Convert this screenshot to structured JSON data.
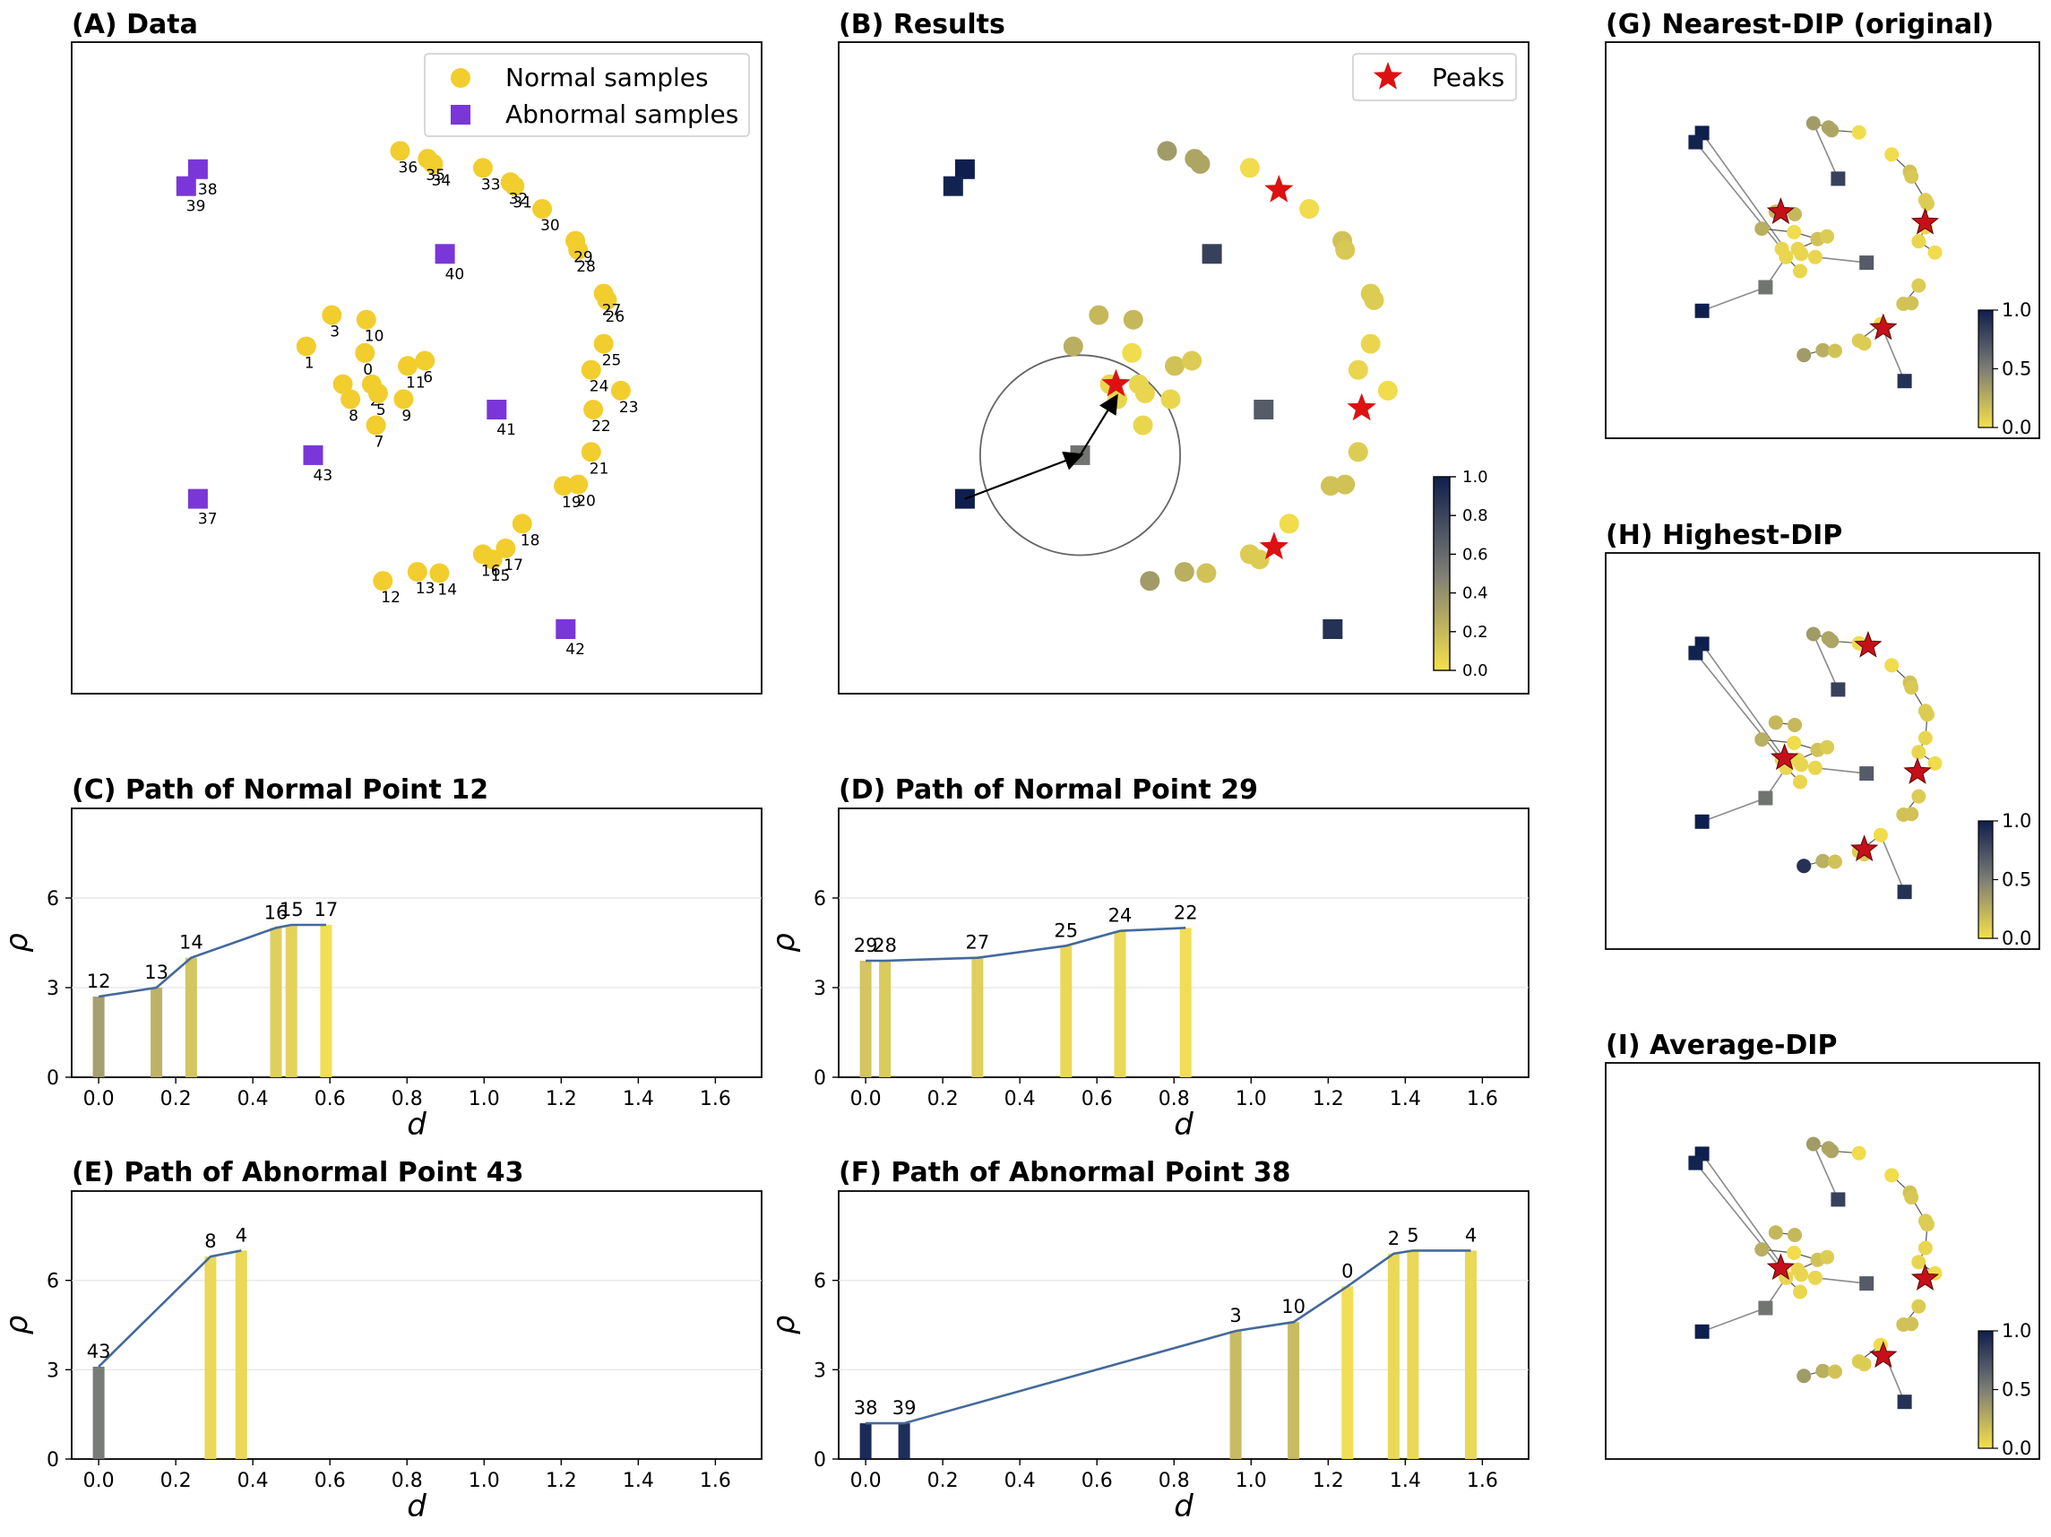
{
  "colors": {
    "normal": "#f2cd2e",
    "abnormal": "#7a36d8",
    "peak": "#dd1111",
    "line": "#44699b",
    "cmap_low": "#f5e04a",
    "cmap_mid": "#7d7d75",
    "cmap_high": "#0f1f4d",
    "link": "#8a8a8a"
  },
  "panels": {
    "A": {
      "title": "(A) Data",
      "legend": [
        "Normal samples",
        "Abnormal samples"
      ]
    },
    "B": {
      "title": "(B) Results",
      "legend": [
        "Peaks"
      ],
      "colorbar_ticks": [
        "0.0",
        "0.2",
        "0.4",
        "0.6",
        "0.8",
        "1.0"
      ]
    },
    "C": {
      "title": "(C) Path of Normal Point 12"
    },
    "D": {
      "title": "(D) Path of Normal Point 29"
    },
    "E": {
      "title": "(E) Path of Abnormal Point 43"
    },
    "F": {
      "title": "(F) Path of Abnormal Point 38"
    },
    "G": {
      "title": "(G) Nearest-DIP (original)",
      "colorbar_ticks": [
        "0.0",
        "0.5",
        "1.0"
      ]
    },
    "H": {
      "title": "(H) Highest-DIP",
      "colorbar_ticks": [
        "0.0",
        "0.5",
        "1.0"
      ]
    },
    "I": {
      "title": "(I) Average-DIP",
      "colorbar_ticks": [
        "0.0",
        "0.5",
        "1.0"
      ]
    }
  },
  "chart_data": [
    {
      "panel": "A",
      "type": "scatter",
      "title": "(A) Data",
      "xlim": [
        0,
        100
      ],
      "ylim": [
        0,
        100
      ],
      "series": [
        {
          "name": "Normal samples",
          "marker": "circle",
          "points": [
            {
              "id": "0",
              "x": 42.5,
              "y": 52.3
            },
            {
              "id": "1",
              "x": 34,
              "y": 53.3
            },
            {
              "id": "2",
              "x": 43.5,
              "y": 47.5
            },
            {
              "id": "3",
              "x": 37.7,
              "y": 58.1
            },
            {
              "id": "4",
              "x": 39.3,
              "y": 47.5
            },
            {
              "id": "5",
              "x": 44.4,
              "y": 46.1
            },
            {
              "id": "6",
              "x": 51.2,
              "y": 51.1
            },
            {
              "id": "7",
              "x": 44.1,
              "y": 41.2
            },
            {
              "id": "8",
              "x": 40.4,
              "y": 45.2
            },
            {
              "id": "9",
              "x": 48.1,
              "y": 45.2
            },
            {
              "id": "10",
              "x": 42.7,
              "y": 57.4
            },
            {
              "id": "11",
              "x": 48.7,
              "y": 50.3
            },
            {
              "id": "12",
              "x": 45.1,
              "y": 17.3
            },
            {
              "id": "13",
              "x": 50.1,
              "y": 18.7
            },
            {
              "id": "14",
              "x": 53.3,
              "y": 18.5
            },
            {
              "id": "15",
              "x": 61,
              "y": 20.6
            },
            {
              "id": "16",
              "x": 59.6,
              "y": 21.4
            },
            {
              "id": "17",
              "x": 62.9,
              "y": 22.3
            },
            {
              "id": "18",
              "x": 65.3,
              "y": 26.1
            },
            {
              "id": "19",
              "x": 71.3,
              "y": 31.9
            },
            {
              "id": "20",
              "x": 73.4,
              "y": 32.1
            },
            {
              "id": "21",
              "x": 75.3,
              "y": 37.1
            },
            {
              "id": "22",
              "x": 75.6,
              "y": 43.6
            },
            {
              "id": "23",
              "x": 79.6,
              "y": 46.5
            },
            {
              "id": "24",
              "x": 75.3,
              "y": 49.7
            },
            {
              "id": "25",
              "x": 77.1,
              "y": 53.7
            },
            {
              "id": "26",
              "x": 77.6,
              "y": 60.4
            },
            {
              "id": "27",
              "x": 77.1,
              "y": 61.4
            },
            {
              "id": "28",
              "x": 73.4,
              "y": 68.1
            },
            {
              "id": "29",
              "x": 73,
              "y": 69.5
            },
            {
              "id": "30",
              "x": 68.2,
              "y": 74.4
            },
            {
              "id": "31",
              "x": 64.2,
              "y": 77.9
            },
            {
              "id": "32",
              "x": 63.6,
              "y": 78.5
            },
            {
              "id": "33",
              "x": 59.6,
              "y": 80.7
            },
            {
              "id": "34",
              "x": 52.4,
              "y": 81.3
            },
            {
              "id": "35",
              "x": 51.6,
              "y": 82.1
            },
            {
              "id": "36",
              "x": 47.6,
              "y": 83.3
            }
          ]
        },
        {
          "name": "Abnormal samples",
          "marker": "square",
          "points": [
            {
              "id": "37",
              "x": 18.3,
              "y": 29.9
            },
            {
              "id": "38",
              "x": 18.3,
              "y": 80.5
            },
            {
              "id": "39",
              "x": 16.6,
              "y": 77.9
            },
            {
              "id": "40",
              "x": 54.1,
              "y": 67.5
            },
            {
              "id": "41",
              "x": 61.6,
              "y": 43.6
            },
            {
              "id": "42",
              "x": 71.6,
              "y": 9.9
            },
            {
              "id": "43",
              "x": 35,
              "y": 36.6
            }
          ]
        }
      ]
    },
    {
      "panel": "B",
      "type": "scatter",
      "title": "(B) Results",
      "xlim": [
        0,
        100
      ],
      "ylim": [
        0,
        100
      ],
      "colorbar": {
        "min": 0,
        "max": 1
      },
      "points": [
        {
          "x": 47.6,
          "y": 83.3,
          "v": 0.35,
          "m": "c"
        },
        {
          "x": 51.6,
          "y": 82.1,
          "v": 0.3,
          "m": "c"
        },
        {
          "x": 52.4,
          "y": 81.3,
          "v": 0.3,
          "m": "c"
        },
        {
          "x": 59.6,
          "y": 80.7,
          "v": 0.02,
          "m": "c"
        },
        {
          "x": 68.2,
          "y": 74.4,
          "v": 0.02,
          "m": "c"
        },
        {
          "x": 73,
          "y": 69.5,
          "v": 0.15,
          "m": "c"
        },
        {
          "x": 73.4,
          "y": 68.1,
          "v": 0.12,
          "m": "c"
        },
        {
          "x": 77.1,
          "y": 61.4,
          "v": 0.1,
          "m": "c"
        },
        {
          "x": 77.6,
          "y": 60.4,
          "v": 0.1,
          "m": "c"
        },
        {
          "x": 77.1,
          "y": 53.7,
          "v": 0.05,
          "m": "c"
        },
        {
          "x": 75.3,
          "y": 49.7,
          "v": 0.05,
          "m": "c"
        },
        {
          "x": 79.6,
          "y": 46.5,
          "v": 0.02,
          "m": "c"
        },
        {
          "x": 75.3,
          "y": 37.1,
          "v": 0.1,
          "m": "c"
        },
        {
          "x": 71.3,
          "y": 31.9,
          "v": 0.15,
          "m": "c"
        },
        {
          "x": 73.4,
          "y": 32.1,
          "v": 0.15,
          "m": "c"
        },
        {
          "x": 65.3,
          "y": 26.1,
          "v": 0.02,
          "m": "c"
        },
        {
          "x": 59.6,
          "y": 21.4,
          "v": 0.1,
          "m": "c"
        },
        {
          "x": 61,
          "y": 20.6,
          "v": 0.1,
          "m": "c"
        },
        {
          "x": 45.1,
          "y": 17.3,
          "v": 0.35,
          "m": "c"
        },
        {
          "x": 50.1,
          "y": 18.7,
          "v": 0.25,
          "m": "c"
        },
        {
          "x": 53.3,
          "y": 18.5,
          "v": 0.15,
          "m": "c"
        },
        {
          "x": 37.7,
          "y": 58.1,
          "v": 0.2,
          "m": "c"
        },
        {
          "x": 42.7,
          "y": 57.4,
          "v": 0.2,
          "m": "c"
        },
        {
          "x": 34,
          "y": 53.3,
          "v": 0.25,
          "m": "c"
        },
        {
          "x": 42.5,
          "y": 52.3,
          "v": 0.02,
          "m": "c"
        },
        {
          "x": 48.7,
          "y": 50.3,
          "v": 0.15,
          "m": "c"
        },
        {
          "x": 51.2,
          "y": 51.1,
          "v": 0.1,
          "m": "c"
        },
        {
          "x": 43.5,
          "y": 47.5,
          "v": 0.05,
          "m": "c"
        },
        {
          "x": 44.4,
          "y": 46.1,
          "v": 0.05,
          "m": "c"
        },
        {
          "x": 48.1,
          "y": 45.2,
          "v": 0.05,
          "m": "c"
        },
        {
          "x": 39.3,
          "y": 47.5,
          "v": 0.05,
          "m": "c"
        },
        {
          "x": 40.4,
          "y": 45.2,
          "v": 0.05,
          "m": "c"
        },
        {
          "x": 44.1,
          "y": 41.2,
          "v": 0.05,
          "m": "c"
        },
        {
          "x": 18.3,
          "y": 80.5,
          "v": 1.0,
          "m": "s"
        },
        {
          "x": 16.6,
          "y": 77.9,
          "v": 0.98,
          "m": "s"
        },
        {
          "x": 54.1,
          "y": 67.5,
          "v": 0.82,
          "m": "s"
        },
        {
          "x": 61.6,
          "y": 43.6,
          "v": 0.68,
          "m": "s"
        },
        {
          "x": 71.6,
          "y": 9.9,
          "v": 0.9,
          "m": "s"
        },
        {
          "x": 18.3,
          "y": 29.9,
          "v": 1.0,
          "m": "s"
        },
        {
          "x": 35,
          "y": 36.6,
          "v": 0.55,
          "m": "s"
        }
      ],
      "peaks": [
        {
          "x": 63.8,
          "y": 77.3
        },
        {
          "x": 40.2,
          "y": 47.5
        },
        {
          "x": 75.8,
          "y": 43.8
        },
        {
          "x": 63.1,
          "y": 22.5
        }
      ],
      "circle": {
        "cx": 35,
        "cy": 36.6,
        "r": 14.5
      },
      "arrows": [
        {
          "from": [
            18.3,
            29.9
          ],
          "to": [
            35,
            36.6
          ]
        },
        {
          "from": [
            35,
            36.6
          ],
          "to": [
            40.2,
            45.5
          ]
        }
      ]
    },
    {
      "panel": "C",
      "type": "bar",
      "title": "(C) Path of Normal Point 12",
      "xlabel": "d",
      "ylabel": "ρ",
      "xlim": [
        -0.07,
        1.72
      ],
      "ylim": [
        0,
        9
      ],
      "xticks": [
        "0.0",
        "0.2",
        "0.4",
        "0.6",
        "0.8",
        "1.0",
        "1.2",
        "1.4",
        "1.6"
      ],
      "yticks": [
        "0",
        "3",
        "6"
      ],
      "bars": [
        {
          "label": "12",
          "d": 0.0,
          "rho": 2.7,
          "v": 0.35
        },
        {
          "label": "13",
          "d": 0.15,
          "rho": 3.0,
          "v": 0.25
        },
        {
          "label": "14",
          "d": 0.24,
          "rho": 4.0,
          "v": 0.15
        },
        {
          "label": "16",
          "d": 0.46,
          "rho": 5.0,
          "v": 0.1
        },
        {
          "label": "15",
          "d": 0.5,
          "rho": 5.1,
          "v": 0.08
        },
        {
          "label": "17",
          "d": 0.59,
          "rho": 5.1,
          "v": 0.02
        }
      ]
    },
    {
      "panel": "D",
      "type": "bar",
      "title": "(D) Path of Normal Point 29",
      "xlabel": "d",
      "ylabel": "ρ",
      "xlim": [
        -0.07,
        1.72
      ],
      "ylim": [
        0,
        9
      ],
      "xticks": [
        "0.0",
        "0.2",
        "0.4",
        "0.6",
        "0.8",
        "1.0",
        "1.2",
        "1.4",
        "1.6"
      ],
      "yticks": [
        "0",
        "3",
        "6"
      ],
      "bars": [
        {
          "label": "29",
          "d": 0.0,
          "rho": 3.9,
          "v": 0.15
        },
        {
          "label": "28",
          "d": 0.05,
          "rho": 3.9,
          "v": 0.12
        },
        {
          "label": "27",
          "d": 0.29,
          "rho": 4.0,
          "v": 0.1
        },
        {
          "label": "25",
          "d": 0.52,
          "rho": 4.4,
          "v": 0.05
        },
        {
          "label": "24",
          "d": 0.66,
          "rho": 4.9,
          "v": 0.05
        },
        {
          "label": "22",
          "d": 0.83,
          "rho": 5.0,
          "v": 0.02
        }
      ]
    },
    {
      "panel": "E",
      "type": "bar",
      "title": "(E) Path of Abnormal Point 43",
      "xlabel": "d",
      "ylabel": "ρ",
      "xlim": [
        -0.07,
        1.72
      ],
      "ylim": [
        0,
        9
      ],
      "xticks": [
        "0.0",
        "0.2",
        "0.4",
        "0.6",
        "0.8",
        "1.0",
        "1.2",
        "1.4",
        "1.6"
      ],
      "yticks": [
        "0",
        "3",
        "6"
      ],
      "bars": [
        {
          "label": "43",
          "d": 0.0,
          "rho": 3.1,
          "v": 0.55
        },
        {
          "label": "8",
          "d": 0.29,
          "rho": 6.8,
          "v": 0.05
        },
        {
          "label": "4",
          "d": 0.37,
          "rho": 7.0,
          "v": 0.05
        }
      ]
    },
    {
      "panel": "F",
      "type": "bar",
      "title": "(F) Path of Abnormal Point 38",
      "xlabel": "d",
      "ylabel": "ρ",
      "xlim": [
        -0.07,
        1.72
      ],
      "ylim": [
        0,
        9
      ],
      "xticks": [
        "0.0",
        "0.2",
        "0.4",
        "0.6",
        "0.8",
        "1.0",
        "1.2",
        "1.4",
        "1.6"
      ],
      "yticks": [
        "0",
        "3",
        "6"
      ],
      "bars": [
        {
          "label": "38",
          "d": 0.0,
          "rho": 1.2,
          "v": 1.0
        },
        {
          "label": "39",
          "d": 0.1,
          "rho": 1.2,
          "v": 0.98
        },
        {
          "label": "3",
          "d": 0.96,
          "rho": 4.3,
          "v": 0.2
        },
        {
          "label": "10",
          "d": 1.11,
          "rho": 4.6,
          "v": 0.2
        },
        {
          "label": "0",
          "d": 1.25,
          "rho": 5.8,
          "v": 0.02
        },
        {
          "label": "2",
          "d": 1.37,
          "rho": 6.9,
          "v": 0.05
        },
        {
          "label": "5",
          "d": 1.42,
          "rho": 7.0,
          "v": 0.05
        },
        {
          "label": "4",
          "d": 1.57,
          "rho": 7.0,
          "v": 0.05
        }
      ]
    },
    {
      "panel": "G",
      "type": "scatter",
      "title": "(G) Nearest-DIP (original)",
      "colorbar": {
        "min": 0,
        "max": 1
      },
      "peaks": [
        [
          39,
          58
        ],
        [
          77,
          55
        ],
        [
          66,
          25
        ]
      ],
      "extra_points": []
    },
    {
      "panel": "H",
      "type": "scatter",
      "title": "(H) Highest-DIP",
      "colorbar": {
        "min": 0,
        "max": 1
      },
      "peaks": [
        [
          62,
          80
        ],
        [
          40,
          48
        ],
        [
          75,
          44
        ],
        [
          61,
          22
        ]
      ],
      "extra_points": [
        [
          45.1,
          17.3,
          0.9
        ]
      ]
    },
    {
      "panel": "I",
      "type": "scatter",
      "title": "(I) Average-DIP",
      "colorbar": {
        "min": 0,
        "max": 1
      },
      "peaks": [
        [
          39,
          48
        ],
        [
          77,
          45
        ],
        [
          66,
          23
        ]
      ],
      "extra_points": []
    }
  ]
}
